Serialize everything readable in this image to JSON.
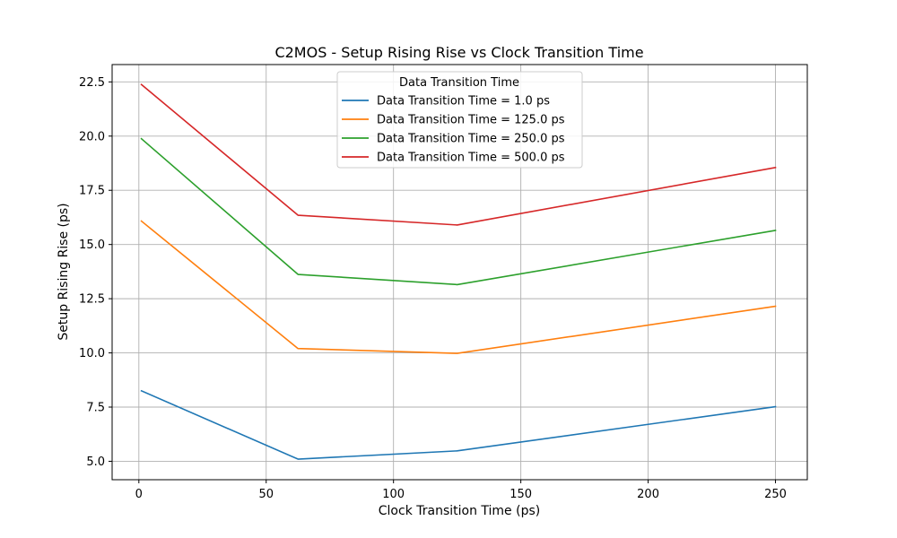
{
  "chart_data": {
    "type": "line",
    "title": "C2MOS - Setup Rising Rise vs Clock Transition Time",
    "xlabel": "Clock Transition Time (ps)",
    "ylabel": "Setup Rising Rise (ps)",
    "xlim": [
      -10.5,
      262.5
    ],
    "ylim": [
      4.15,
      23.3
    ],
    "xticks": [
      0,
      50,
      100,
      150,
      200,
      250
    ],
    "xtick_labels": [
      "0",
      "50",
      "100",
      "150",
      "200",
      "250"
    ],
    "yticks": [
      5.0,
      7.5,
      10.0,
      12.5,
      15.0,
      17.5,
      20.0,
      22.5
    ],
    "ytick_labels": [
      "5.0",
      "7.5",
      "10.0",
      "12.5",
      "15.0",
      "17.5",
      "20.0",
      "22.5"
    ],
    "grid": true,
    "legend": {
      "title": "Data Transition Time",
      "placement": "upper-center"
    },
    "x": [
      1,
      62.5,
      125,
      250
    ],
    "series": [
      {
        "name": "Data Transition Time = 1.0 ps",
        "color": "#1f77b4",
        "values": [
          8.25,
          5.1,
          5.48,
          7.52
        ]
      },
      {
        "name": "Data Transition Time = 125.0 ps",
        "color": "#ff7f0e",
        "values": [
          16.08,
          10.2,
          9.98,
          12.15
        ]
      },
      {
        "name": "Data Transition Time = 250.0 ps",
        "color": "#2ca02c",
        "values": [
          19.88,
          13.62,
          13.15,
          15.65
        ]
      },
      {
        "name": "Data Transition Time = 500.0 ps",
        "color": "#d62728",
        "values": [
          22.38,
          16.35,
          15.9,
          18.55
        ]
      }
    ]
  }
}
